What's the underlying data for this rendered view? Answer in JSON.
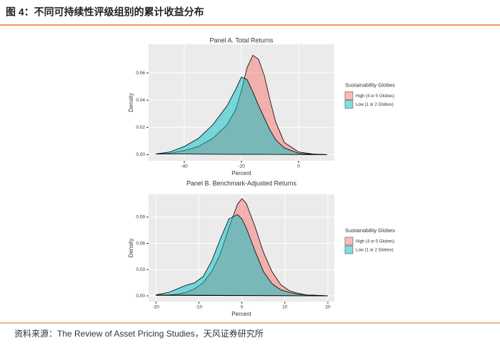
{
  "header": {
    "title": "图 4：不同可持续性评级组别的累计收益分布"
  },
  "source": "资料来源：The Review of Asset Pricing Studies，天风证券研究所",
  "chart_data": [
    {
      "type": "area",
      "title": "Panel A. Total Returns",
      "x_label": "Percent",
      "y_label": "Density",
      "legend_title": "Sustainability Globes",
      "legend": "right",
      "grid": true,
      "x": [
        -50,
        -45,
        -40,
        -35,
        -30,
        -25,
        -22,
        -20,
        -18,
        -16,
        -14,
        -12,
        -10,
        -8,
        -5,
        0,
        5,
        10
      ],
      "series": [
        {
          "name": "High (4 or 5 Globes)",
          "color": "#F8766D",
          "values": [
            0.0005,
            0.001,
            0.003,
            0.006,
            0.012,
            0.022,
            0.033,
            0.047,
            0.064,
            0.073,
            0.07,
            0.058,
            0.04,
            0.024,
            0.009,
            0.002,
            0.0005,
            0
          ]
        },
        {
          "name": "Low (1 or 2 Globes)",
          "color": "#00BFC4",
          "values": [
            0.0005,
            0.002,
            0.006,
            0.012,
            0.022,
            0.036,
            0.048,
            0.057,
            0.055,
            0.046,
            0.036,
            0.027,
            0.018,
            0.011,
            0.005,
            0.001,
            0.0003,
            0
          ]
        }
      ],
      "xlim": [
        -52.5,
        12.5
      ],
      "xticks": [
        -40,
        -20,
        0
      ],
      "ylim": [
        -0.0045,
        0.081
      ],
      "yticks": [
        {
          "value": 0,
          "label": "0.00"
        },
        0.02,
        0.04,
        0.06
      ]
    },
    {
      "type": "area",
      "title": "Panel B. Benchmark-Adjusted Returns",
      "x_label": "Percent",
      "y_label": "Density",
      "legend_title": "Sustainability Globes",
      "legend": "right",
      "grid": true,
      "x": [
        -20,
        -17,
        -15,
        -13,
        -11,
        -9,
        -7,
        -5,
        -3,
        -1,
        0,
        1,
        3,
        5,
        7,
        9,
        11,
        13,
        15,
        18,
        20
      ],
      "series": [
        {
          "name": "High (4 or 5 Globes)",
          "color": "#F8766D",
          "values": [
            0.0005,
            0.001,
            0.002,
            0.004,
            0.008,
            0.015,
            0.028,
            0.048,
            0.078,
            0.105,
            0.111,
            0.106,
            0.08,
            0.05,
            0.028,
            0.013,
            0.006,
            0.003,
            0.001,
            0.0005,
            0
          ]
        },
        {
          "name": "Low (1 or 2 Globes)",
          "color": "#00BFC4",
          "values": [
            0.001,
            0.004,
            0.008,
            0.012,
            0.015,
            0.022,
            0.04,
            0.065,
            0.088,
            0.093,
            0.088,
            0.078,
            0.052,
            0.028,
            0.014,
            0.007,
            0.004,
            0.002,
            0.001,
            0.0005,
            0
          ]
        }
      ],
      "xlim": [
        -21.7,
        21.5
      ],
      "xticks": [
        -20,
        -10,
        0,
        10,
        20
      ],
      "ylim": [
        -0.0065,
        0.116
      ],
      "yticks": [
        {
          "value": 0,
          "label": "0.00"
        },
        0.03,
        0.06,
        0.09
      ]
    }
  ]
}
